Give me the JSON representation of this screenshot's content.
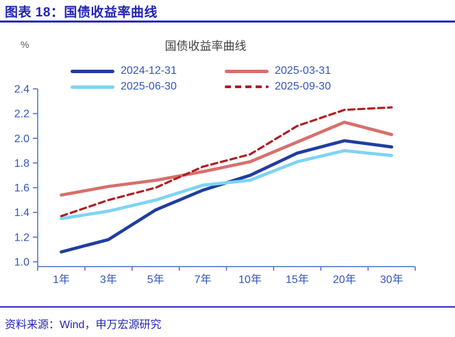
{
  "header": {
    "title": "图表 18：国债收益率曲线"
  },
  "footer": {
    "source": "资料来源：Wind，申万宏源研究"
  },
  "colors": {
    "header_blue": "#2424b4",
    "rule_blue": "#2a2ac0",
    "axis_blue": "#4472c4",
    "tick_label_blue": "#3355bb",
    "title_gray": "#404040",
    "unit_gray": "#595959"
  },
  "chart_data": {
    "type": "line",
    "title": "国债收益率曲线",
    "unit": "%",
    "categories": [
      "1年",
      "3年",
      "5年",
      "7年",
      "10年",
      "15年",
      "20年",
      "30年"
    ],
    "series": [
      {
        "name": "2024-12-31",
        "color": "#203da0",
        "style": "solid",
        "values": [
          1.08,
          1.18,
          1.42,
          1.58,
          1.7,
          1.88,
          1.98,
          1.93
        ]
      },
      {
        "name": "2025-03-31",
        "color": "#d7706b",
        "style": "solid",
        "values": [
          1.54,
          1.61,
          1.66,
          1.73,
          1.81,
          1.97,
          2.13,
          2.03
        ]
      },
      {
        "name": "2025-06-30",
        "color": "#7ed3f4",
        "style": "solid",
        "values": [
          1.35,
          1.41,
          1.5,
          1.62,
          1.66,
          1.81,
          1.9,
          1.86
        ]
      },
      {
        "name": "2025-09-30",
        "color": "#b01d22",
        "style": "dashed",
        "values": [
          1.37,
          1.5,
          1.6,
          1.77,
          1.87,
          2.1,
          2.23,
          2.25
        ]
      }
    ],
    "ylim": [
      1.0,
      2.4
    ],
    "ytick_step": 0.2,
    "ytick_labels": [
      "1.0",
      "1.2",
      "1.4",
      "1.6",
      "1.8",
      "2.0",
      "2.2",
      "2.4"
    ],
    "legend_position": "top",
    "grid": false
  }
}
